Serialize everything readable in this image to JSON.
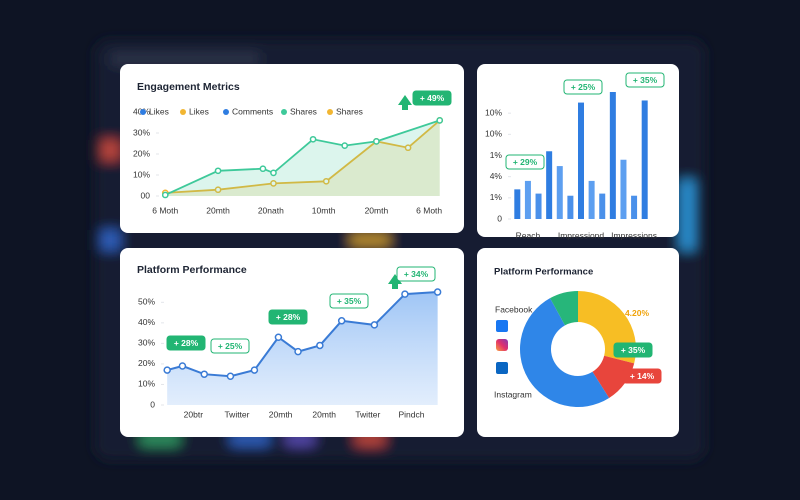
{
  "chart_data": [
    {
      "type": "line",
      "title": "Engagement Metrics",
      "legend": [
        {
          "name": "Likes",
          "color": "#2f7de1"
        },
        {
          "name": "Likes",
          "color": "#f2b632"
        },
        {
          "name": "Comments",
          "color": "#2f7de1"
        },
        {
          "name": "Shares",
          "color": "#3ec99a"
        },
        {
          "name": "Shares",
          "color": "#f2b632"
        }
      ],
      "xlim": [
        -0.1,
        5.3
      ],
      "ylim": [
        0,
        40
      ],
      "xticks": [
        {
          "value": 0,
          "label": "6 Moth"
        },
        {
          "value": 1,
          "label": "20mth"
        },
        {
          "value": 2,
          "label": "20nath"
        },
        {
          "value": 3,
          "label": "10mth"
        },
        {
          "value": 4,
          "label": "20mth"
        },
        {
          "value": 5,
          "label": "6 Moth"
        }
      ],
      "yticks": [
        {
          "value": 0,
          "label": "00"
        },
        {
          "value": 10,
          "label": "10%"
        },
        {
          "value": 20,
          "label": "20%"
        },
        {
          "value": 30,
          "label": "30%"
        },
        {
          "value": 40,
          "label": "40%"
        }
      ],
      "series": [
        {
          "color": "#f2b632",
          "x": [
            0,
            1,
            2.05,
            3.05,
            4,
            4.6,
            5.2
          ],
          "values": [
            1.5,
            3,
            6,
            7,
            26,
            23,
            36
          ]
        },
        {
          "color": "#3ec99a",
          "x": [
            0,
            1,
            1.85,
            2.05,
            2.8,
            3.4,
            4,
            5.2
          ],
          "values": [
            0.5,
            12,
            13,
            11,
            27,
            24,
            26,
            36
          ]
        }
      ],
      "annotations": [
        {
          "text": "+ 49%",
          "color": "#22b573",
          "style": "filled"
        }
      ]
    },
    {
      "type": "bar",
      "categories": [
        null,
        "Reach",
        null,
        null,
        null,
        null,
        "Impressiond",
        null,
        null,
        null,
        null,
        "Impressions",
        null
      ],
      "values": [
        1.4,
        1.8,
        1.2,
        3.2,
        2.5,
        1.1,
        5.5,
        1.8,
        1.2,
        6,
        2.8,
        1.1,
        5.6
      ],
      "colors": [
        "#2f7de1",
        "#5d9ff0",
        "#4a90ea",
        "#2f7de1",
        "#5d9ff0",
        "#4a90ea",
        "#2f7de1",
        "#5d9ff0",
        "#4a90ea",
        "#2f7de1",
        "#5d9ff0",
        "#4a90ea",
        "#2f7de1"
      ],
      "ylim": [
        0,
        6
      ],
      "yticks": [
        0,
        {
          "value": 1,
          "label": "1%"
        },
        {
          "value": 2,
          "label": "4%"
        },
        {
          "value": 3,
          "label": "1%"
        },
        {
          "value": 4,
          "label": "10%"
        },
        {
          "value": 5,
          "label": "10%"
        }
      ],
      "annotations": [
        {
          "text": "+ 29%",
          "color": "#22b573",
          "style": "pill"
        },
        {
          "text": "+ 25%",
          "color": "#22b573",
          "style": "pill"
        },
        {
          "text": "+ 35%",
          "color": "#22b573",
          "style": "pill"
        }
      ]
    },
    {
      "type": "line",
      "title": "Platform Performance",
      "xlim": [
        -0.65,
        5.7
      ],
      "ylim": [
        0,
        56
      ],
      "area": true,
      "xticks": [
        {
          "value": 0,
          "label": "20btr"
        },
        {
          "value": 1,
          "label": "Twitter"
        },
        {
          "value": 2,
          "label": "20mth"
        },
        {
          "value": 3,
          "label": "20mth"
        },
        {
          "value": 4,
          "label": "Twitter"
        },
        {
          "value": 5,
          "label": "Pindch"
        }
      ],
      "yticks": [
        0,
        {
          "value": 10,
          "label": "10%"
        },
        {
          "value": 20,
          "label": "20%"
        },
        {
          "value": 30,
          "label": "30%"
        },
        {
          "value": 40,
          "label": "40%"
        },
        {
          "value": 50,
          "label": "50%"
        }
      ],
      "series": [
        {
          "color": "#3a7bd5",
          "x": [
            -0.6,
            -0.25,
            0.25,
            0.85,
            1.4,
            1.95,
            2.4,
            2.9,
            3.4,
            4.15,
            4.85,
            5.6
          ],
          "values": [
            17,
            19,
            15,
            14,
            17,
            33,
            26,
            29,
            41,
            39,
            54,
            55
          ]
        }
      ],
      "annotations": [
        {
          "text": "+ 28%",
          "color": "#22b573",
          "style": "filled"
        },
        {
          "text": "+ 25%",
          "color": "#22b573",
          "style": "pill"
        },
        {
          "text": "+ 28%",
          "color": "#22b573",
          "style": "filled"
        },
        {
          "text": "+ 35%",
          "color": "#22b573",
          "style": "pill"
        },
        {
          "text": "+ 34%",
          "color": "#22b573",
          "style": "pill"
        }
      ]
    },
    {
      "type": "donut",
      "title": "Platform Performance",
      "legend": [
        "Facebook",
        "Instagram"
      ],
      "values": [
        29,
        12,
        51,
        8
      ],
      "colors": [
        "#f7be24",
        "#e8453c",
        "#2f86e8",
        "#27b67a"
      ],
      "annotations": [
        {
          "text": "4.20%",
          "color": "#f0a30a",
          "style": "text"
        },
        {
          "text": "+ 35%",
          "color": "#22b573",
          "style": "filled"
        },
        {
          "text": "+ 14%",
          "color": "#e8453c",
          "style": "filled"
        }
      ]
    }
  ]
}
